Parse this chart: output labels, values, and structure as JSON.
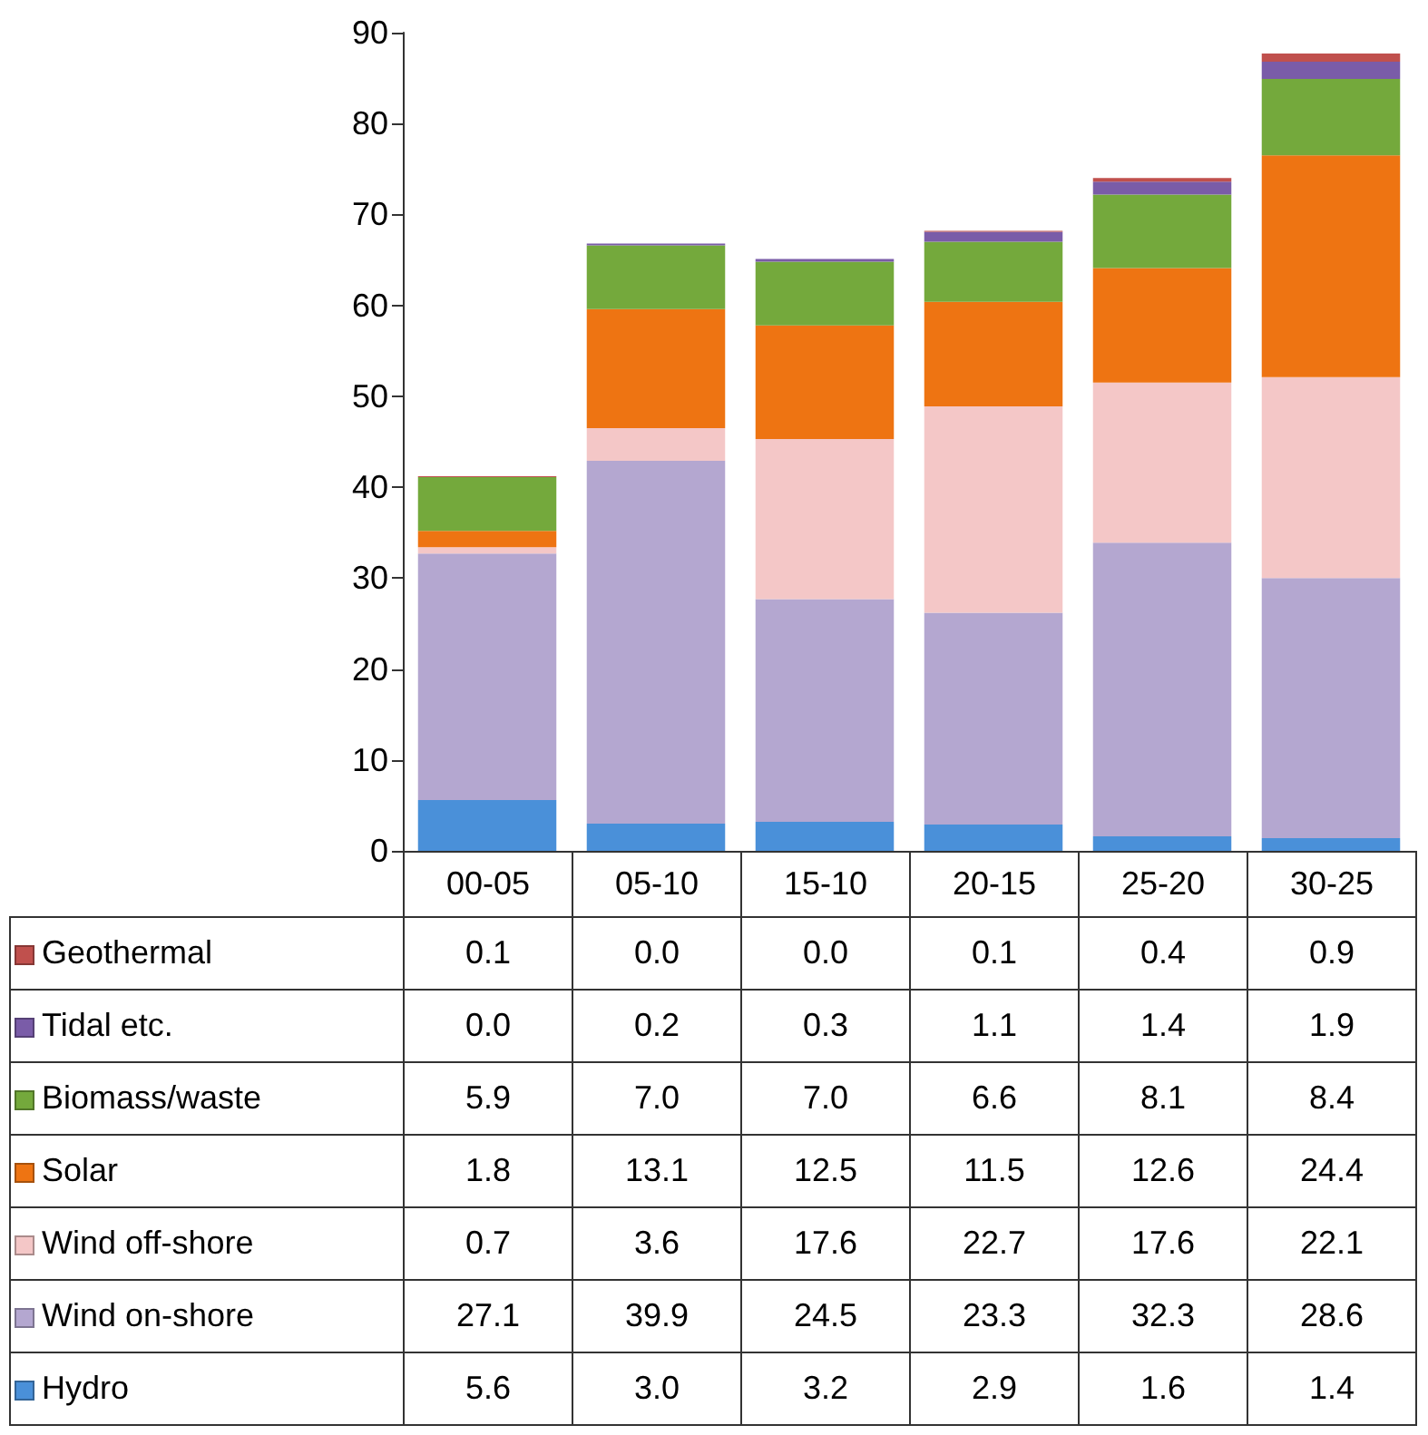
{
  "chart_data": {
    "type": "bar",
    "stacked": true,
    "categories": [
      "00-05",
      "05-10",
      "15-10",
      "20-15",
      "25-20",
      "30-25"
    ],
    "ylim": [
      0,
      90
    ],
    "yticks": [
      0,
      10,
      20,
      30,
      40,
      50,
      60,
      70,
      80,
      90
    ],
    "grid": false,
    "legend": "bottom left",
    "series": [
      {
        "name": "Hydro",
        "color": "#4a90d9",
        "values": [
          5.6,
          3.0,
          3.2,
          2.9,
          1.6,
          1.4
        ],
        "value_labels": [
          "5.6",
          "3.0",
          "3.2",
          "2.9",
          "1.6",
          "1.4"
        ]
      },
      {
        "name": "Wind on-shore",
        "color": "#b4a7d0",
        "values": [
          27.1,
          39.9,
          24.5,
          23.3,
          32.3,
          28.6
        ],
        "value_labels": [
          "27.1",
          "39.9",
          "24.5",
          "23.3",
          "32.3",
          "28.6"
        ]
      },
      {
        "name": "Wind off-shore",
        "color": "#f4c7c7",
        "values": [
          0.7,
          3.6,
          17.6,
          22.7,
          17.6,
          22.1
        ],
        "value_labels": [
          "0.7",
          "3.6",
          "17.6",
          "22.7",
          "17.6",
          "22.1"
        ]
      },
      {
        "name": "Solar",
        "color": "#ee7412",
        "values": [
          1.8,
          13.1,
          12.5,
          11.5,
          12.6,
          24.4
        ],
        "value_labels": [
          "1.8",
          "13.1",
          "12.5",
          "11.5",
          "12.6",
          "24.4"
        ]
      },
      {
        "name": "Biomass/waste",
        "color": "#74a93c",
        "values": [
          5.9,
          7.0,
          7.0,
          6.6,
          8.1,
          8.4
        ],
        "value_labels": [
          "5.9",
          "7.0",
          "7.0",
          "6.6",
          "8.1",
          "8.4"
        ]
      },
      {
        "name": "Tidal etc.",
        "color": "#7a5ca8",
        "values": [
          0.0,
          0.2,
          0.3,
          1.1,
          1.4,
          1.9
        ],
        "value_labels": [
          "0.0",
          "0.2",
          "0.3",
          "1.1",
          "1.4",
          "1.9"
        ]
      },
      {
        "name": "Geothermal",
        "color": "#c0504d",
        "values": [
          0.1,
          0.0,
          0.0,
          0.1,
          0.4,
          0.9
        ],
        "value_labels": [
          "0.1",
          "0.0",
          "0.0",
          "0.1",
          "0.4",
          "0.9"
        ]
      }
    ]
  }
}
